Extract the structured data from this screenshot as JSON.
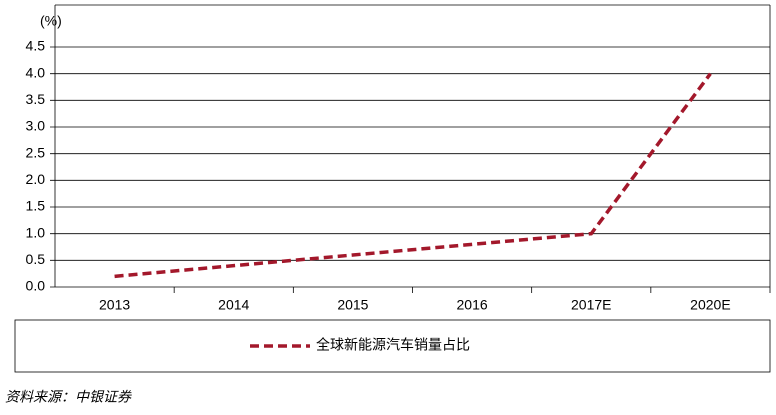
{
  "chart_data": {
    "type": "line",
    "y_unit_label": "(%)",
    "categories": [
      "2013",
      "2014",
      "2015",
      "2016",
      "2017E",
      "2020E"
    ],
    "series": [
      {
        "name": "全球新能源汽车销量占比",
        "color": "#a3182b",
        "values": [
          0.2,
          0.4,
          0.6,
          0.8,
          1.0,
          4.0
        ]
      }
    ],
    "ylim": [
      0,
      4.5
    ],
    "yticks": [
      {
        "value": 0,
        "label": "0.0"
      },
      0.5,
      {
        "value": 1,
        "label": "1.0"
      },
      1.5,
      {
        "value": 2,
        "label": "2.0"
      },
      2.5,
      {
        "value": 3,
        "label": "3.0"
      },
      3.5,
      {
        "value": 4,
        "label": "4.0"
      },
      4.5
    ],
    "grid": true,
    "source": "资料来源：中银证券"
  }
}
